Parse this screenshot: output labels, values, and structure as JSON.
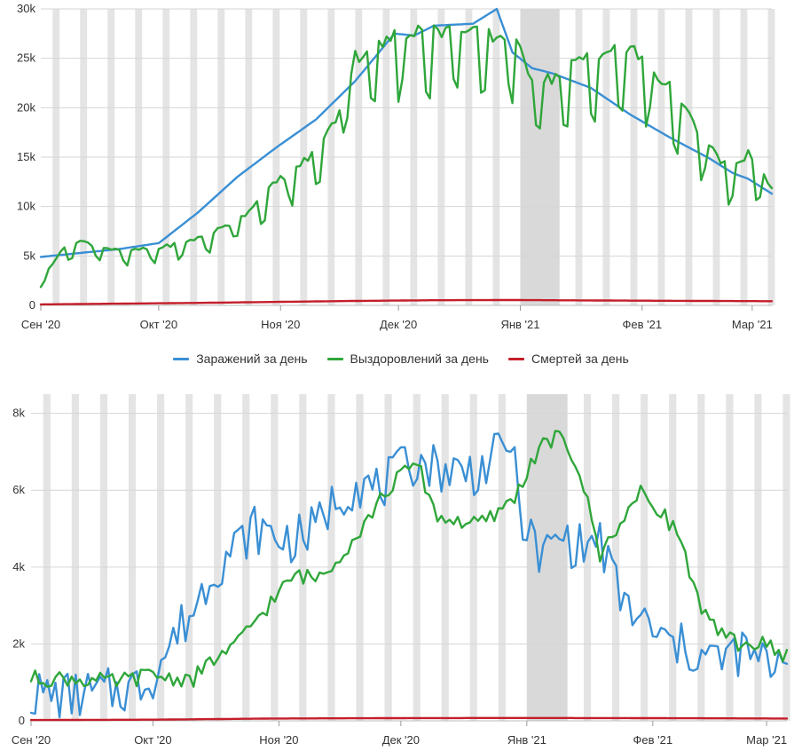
{
  "colors": {
    "infected": "#3a8fd4",
    "recovered": "#2fa63a",
    "deaths": "#c41e2a",
    "weekend_band": "#e4e4e4",
    "holiday_band": "#d9d9d9",
    "grid": "#d6d6d6"
  },
  "legend": [
    {
      "key": "infected",
      "label": "Заражений за день"
    },
    {
      "key": "recovered",
      "label": "Выздоровлений за день"
    },
    {
      "key": "deaths",
      "label": "Смертей за день"
    }
  ],
  "chart_data": [
    {
      "type": "line",
      "title": "",
      "x_month_labels": [
        "Сен '20",
        "Окт '20",
        "Ноя '20",
        "Дек '20",
        "Янв '21",
        "Фев '21",
        "Мар '21"
      ],
      "x_month_start_day": [
        0,
        30,
        61,
        91,
        122,
        153,
        181
      ],
      "y_tick_labels": [
        "0",
        "5k",
        "10k",
        "15k",
        "20k",
        "25k",
        "30k"
      ],
      "y_tick_values": [
        0,
        5000,
        10000,
        15000,
        20000,
        25000,
        30000
      ],
      "ylim": [
        0,
        30000
      ],
      "days": 186,
      "series": [
        {
          "name": "Заражений за день",
          "key": "infected",
          "days": [
            0,
            10,
            20,
            30,
            40,
            50,
            60,
            70,
            80,
            90,
            95,
            100,
            110,
            116,
            120,
            125,
            130,
            140,
            150,
            160,
            170,
            176,
            180,
            186
          ],
          "values": [
            4900,
            5300,
            5700,
            6300,
            9400,
            13000,
            16000,
            18800,
            22700,
            27500,
            27300,
            28300,
            28500,
            30000,
            25600,
            24000,
            23500,
            22000,
            19300,
            17000,
            14900,
            13400,
            12800,
            11300
          ]
        },
        {
          "name": "Выздоровлений за день",
          "key": "recovered",
          "days": [
            0,
            5,
            10,
            20,
            30,
            40,
            50,
            60,
            70,
            75,
            80,
            85,
            90,
            95,
            100,
            110,
            120,
            126,
            130,
            140,
            150,
            160,
            170,
            176,
            180,
            186
          ],
          "values": [
            2500,
            5500,
            6500,
            5500,
            5800,
            6800,
            8500,
            12500,
            15500,
            18800,
            25200,
            26000,
            27200,
            28000,
            27800,
            27500,
            27000,
            22500,
            23000,
            25500,
            26000,
            22000,
            16000,
            13500,
            15500,
            11600
          ],
          "weekday_dip": 0.72
        },
        {
          "name": "Смертей за день",
          "key": "deaths",
          "days": [
            0,
            40,
            80,
            100,
            120,
            150,
            186
          ],
          "values": [
            100,
            250,
            450,
            520,
            540,
            480,
            420
          ]
        }
      ]
    },
    {
      "type": "line",
      "title": "",
      "x_month_labels": [
        "Сен '20",
        "Окт '20",
        "Ноя '20",
        "Дек '20",
        "Янв '21",
        "Фев '21",
        "Мар '21"
      ],
      "x_month_start_day": [
        0,
        30,
        61,
        91,
        122,
        153,
        181
      ],
      "y_tick_labels": [
        "0",
        "2k",
        "4k",
        "6k",
        "8k"
      ],
      "y_tick_values": [
        0,
        2000,
        4000,
        6000,
        8000
      ],
      "ylim": [
        0,
        8500
      ],
      "days": 186,
      "series": [
        {
          "name": "Заражений за день",
          "key": "infected",
          "days": [
            0,
            10,
            20,
            26,
            30,
            36,
            40,
            45,
            50,
            55,
            60,
            65,
            70,
            75,
            80,
            85,
            90,
            95,
            100,
            105,
            110,
            115,
            118,
            120,
            125,
            130,
            135,
            140,
            145,
            150,
            155,
            160,
            165,
            170,
            175,
            180,
            183,
            186
          ],
          "values": [
            700,
            650,
            750,
            900,
            1200,
            2300,
            2900,
            4000,
            4500,
            5000,
            4800,
            4700,
            5000,
            5800,
            6200,
            6000,
            6400,
            6800,
            6600,
            6500,
            6500,
            6900,
            7400,
            5600,
            4200,
            4800,
            4500,
            4700,
            3200,
            2600,
            2100,
            1900,
            1700,
            1600,
            1800,
            1500,
            1500,
            2000
          ],
          "noise": 650
        },
        {
          "name": "Выздоровлений за день",
          "key": "recovered",
          "days": [
            0,
            10,
            20,
            30,
            35,
            40,
            45,
            50,
            55,
            60,
            65,
            70,
            75,
            80,
            85,
            90,
            95,
            100,
            110,
            115,
            120,
            125,
            130,
            135,
            140,
            145,
            150,
            155,
            160,
            165,
            170,
            175,
            180,
            186
          ],
          "values": [
            1100,
            1100,
            1000,
            1200,
            1100,
            1100,
            1600,
            1900,
            2600,
            3200,
            3800,
            3700,
            4200,
            4800,
            5600,
            6300,
            6700,
            5300,
            5100,
            5400,
            6000,
            7100,
            7400,
            6500,
            4300,
            5200,
            5900,
            5500,
            4700,
            2800,
            2200,
            2000,
            2000,
            1700
          ],
          "noise": 220
        },
        {
          "name": "Смертей за день",
          "key": "deaths",
          "days": [
            0,
            30,
            60,
            90,
            120,
            150,
            186
          ],
          "values": [
            20,
            30,
            60,
            70,
            75,
            70,
            60
          ]
        }
      ]
    }
  ]
}
